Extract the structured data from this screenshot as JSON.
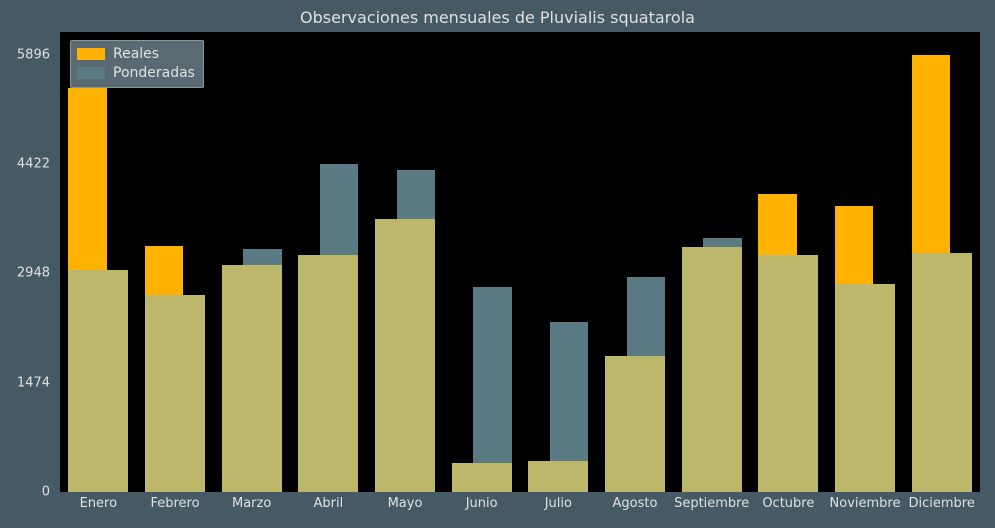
{
  "chart": {
    "type": "bar-grouped-overlap",
    "title": "Observaciones mensuales de Pluvialis squatarola",
    "title_fontsize": 16,
    "title_color": "#e0e0e0",
    "figure_bg": "#455a64",
    "plot_bg": "#000000",
    "axis_text_color": "#e0e0e0",
    "axis_fontsize": 13,
    "legend": {
      "bg": "#5a6a72",
      "border_color": "#8a969c",
      "text_color": "#e0e0e0",
      "items": [
        {
          "label": "Reales",
          "color": "#ffb300"
        },
        {
          "label": "Ponderadas",
          "color": "#5a7a84"
        }
      ]
    },
    "xaxis": {
      "categories": [
        "Enero",
        "Febrero",
        "Marzo",
        "Abril",
        "Mayo",
        "Junio",
        "Julio",
        "Agosto",
        "Septiembre",
        "Octubre",
        "Noviembre",
        "Diciembre"
      ]
    },
    "yaxis": {
      "min": 0,
      "max": 6200,
      "ticks": [
        0,
        1474,
        2948,
        4422,
        5896
      ]
    },
    "series": {
      "reales": {
        "color_top": "#ffb300",
        "color_bottom": "#bdb76b",
        "bar_width_frac": 0.5,
        "offset_frac": -0.14,
        "values": [
          5440,
          3320,
          3060,
          3200,
          3680,
          390,
          420,
          1830,
          3300,
          4020,
          3850,
          5896
        ]
      },
      "ponderadas": {
        "color_top": "#5a7a84",
        "color_bottom": "#bdb76b",
        "bar_width_frac": 0.5,
        "offset_frac": 0.14,
        "values": [
          2990,
          2650,
          3280,
          4422,
          4340,
          2760,
          2290,
          2900,
          3430,
          3200,
          2800,
          3220
        ]
      },
      "ponderadas_overlay_on_reales": [
        2990,
        2650,
        3060,
        3200,
        3680,
        390,
        420,
        1830,
        3300,
        3200,
        2800,
        3220
      ]
    }
  }
}
